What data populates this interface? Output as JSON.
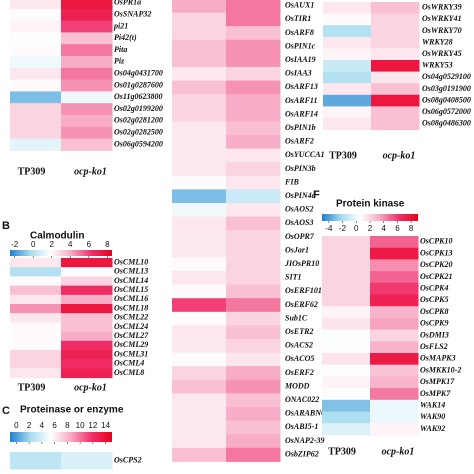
{
  "chart_data": [
    {
      "type": "heatmap",
      "clim": [
        -2.5,
        8.5
      ],
      "colors": [
        "#1f7fd0",
        "#a8dcef",
        "#ffffff",
        "#f7a8c4",
        "#f0306a",
        "#e8001a"
      ],
      "rows": [
        "OsPR1a",
        "OsSNAP32",
        "pi21",
        "Pi42(t)",
        "Pita",
        "Piz",
        "Os04g0431700",
        "Os01g0287600",
        "Os11g0623800",
        "Os02g0199200",
        "Os02g0281200",
        "Os02g0282500",
        "Os06g0594200"
      ],
      "columns": [
        "TP309",
        "ocp-ko1"
      ],
      "values": [
        [
          2.5,
          7.5
        ],
        [
          2,
          7
        ],
        [
          2.2,
          6
        ],
        [
          1.8,
          3.5
        ],
        [
          2,
          5
        ],
        [
          1.5,
          4
        ],
        [
          2.5,
          5
        ],
        [
          2,
          4.5
        ],
        [
          -1,
          1.5
        ],
        [
          3,
          4.5
        ],
        [
          3,
          4
        ],
        [
          3,
          4.5
        ],
        [
          1.2,
          3.5
        ]
      ]
    },
    {
      "type": "heatmap",
      "clim": [
        -2.5,
        8.5
      ],
      "colors": [
        "#1f7fd0",
        "#a8dcef",
        "#ffffff",
        "#f7a8c4",
        "#f0306a",
        "#e8001a"
      ],
      "rows": [
        "OsAUX1",
        "OsTIR1",
        "OsARF8",
        "OsPIN1c",
        "OsIAA19",
        "OsIAA3",
        "OsARF13",
        "OsARF11",
        "OsARF14",
        "OsPIN1b",
        "OsARF2",
        "OsYUCCA1",
        "OsPIN3b",
        "FIB",
        "OsPIN4d",
        "OsAOS2",
        "OsAOS3",
        "OsOPR7",
        "OsJar1",
        "JIOsPR10",
        "SIT1",
        "OsERF101",
        "OsERF62",
        "Sub1C",
        "OsETR2",
        "OsACS2",
        "OsACO5",
        "OsERF2",
        "MODD",
        "ONAC022",
        "OsARABNOX1",
        "OsABI5-1",
        "OsNAP2-39",
        "OsbZIP62"
      ],
      "values": [
        [
          4,
          5
        ],
        [
          3,
          5
        ],
        [
          3,
          3.5
        ],
        [
          3.5,
          4.5
        ],
        [
          3.5,
          4.5
        ],
        [
          2.5,
          3
        ],
        [
          3.5,
          4.5
        ],
        [
          3,
          4
        ],
        [
          3,
          4
        ],
        [
          2.5,
          3.5
        ],
        [
          2.5,
          4
        ],
        [
          2.5,
          2.5
        ],
        [
          2.5,
          3
        ],
        [
          2,
          2.5
        ],
        [
          -1,
          0.5
        ],
        [
          1.5,
          2.5
        ],
        [
          2.5,
          3.5
        ],
        [
          2.5,
          3
        ],
        [
          2.5,
          3
        ],
        [
          2,
          3
        ],
        [
          2.5,
          3
        ],
        [
          2,
          3.5
        ],
        [
          6,
          5
        ],
        [
          2,
          3
        ],
        [
          2.5,
          3.5
        ],
        [
          2.5,
          3
        ],
        [
          2,
          2.5
        ],
        [
          3,
          4
        ],
        [
          3.5,
          4.5
        ],
        [
          2.5,
          3.5
        ],
        [
          2.5,
          4
        ],
        [
          2.5,
          3.5
        ],
        [
          2.5,
          4
        ],
        [
          3.5,
          5
        ]
      ]
    },
    {
      "type": "heatmap",
      "clim": [
        -2.5,
        8.5
      ],
      "colors": [
        "#1f7fd0",
        "#a8dcef",
        "#ffffff",
        "#f7a8c4",
        "#f0306a",
        "#e8001a"
      ],
      "rows": [
        "OsWRKY39",
        "OsWRKY41",
        "OsWRKY70",
        "WRKY28",
        "OsWRKY45",
        "WRKY53",
        "Os04g0529100",
        "Os03g0191900",
        "Os08g0408500",
        "Os06g0572000",
        "Os08g0486300"
      ],
      "columns": [
        "TP309",
        "ocp-ko1"
      ],
      "values": [
        [
          2.5,
          3.5
        ],
        [
          2,
          3
        ],
        [
          0,
          3
        ],
        [
          2.5,
          3
        ],
        [
          2.2,
          2.5
        ],
        [
          0.5,
          7.5
        ],
        [
          0,
          2.5
        ],
        [
          2.5,
          3.5
        ],
        [
          -1.5,
          7.5
        ],
        [
          2.2,
          3.5
        ],
        [
          2.5,
          3.5
        ]
      ]
    },
    {
      "type": "heatmap",
      "label": "B",
      "title": "Calmodulin",
      "clim": [
        -2.5,
        8.5
      ],
      "cticks": [
        -2,
        0,
        2,
        4,
        6,
        8
      ],
      "colors": [
        "#1f7fd0",
        "#a8dcef",
        "#ffffff",
        "#f7a8c4",
        "#f0306a",
        "#e8001a"
      ],
      "rows": [
        "OsCML10",
        "OsCML13",
        "OsCML14",
        "OsCML15",
        "OsCML16",
        "OsCML18",
        "OsCML22",
        "OsCML24",
        "OsCML27",
        "OsCML29",
        "OsCML31",
        "OsCML4",
        "OsCML8"
      ],
      "columns": [
        "TP309",
        "ocp-ko1"
      ],
      "values": [
        [
          2.5,
          7.5
        ],
        [
          0,
          2
        ],
        [
          2,
          3
        ],
        [
          3.5,
          6.5
        ],
        [
          2.5,
          4
        ],
        [
          4.5,
          7.5
        ],
        [
          2.5,
          3.5
        ],
        [
          2,
          3.5
        ],
        [
          2,
          4
        ],
        [
          2,
          6.5
        ],
        [
          3,
          7
        ],
        [
          3,
          6.5
        ],
        [
          2.5,
          7
        ]
      ]
    },
    {
      "type": "heatmap",
      "label": "C",
      "title": "Proteinase or enzyme",
      "clim": [
        -1,
        15
      ],
      "cticks": [
        0,
        2,
        4,
        6,
        8,
        10,
        12,
        14
      ],
      "colors": [
        "#1f7fd0",
        "#a8dcef",
        "#ffffff",
        "#f7a8c4",
        "#f0306a",
        "#e8001a"
      ],
      "rows": [
        "OsCPS2"
      ],
      "values": [
        [
          3,
          4
        ]
      ]
    },
    {
      "type": "heatmap",
      "label": "F",
      "title": "Protein kinase",
      "clim": [
        -5,
        9
      ],
      "cticks": [
        -4,
        -2,
        0,
        2,
        4,
        6,
        8
      ],
      "colors": [
        "#1f7fd0",
        "#a8dcef",
        "#ffffff",
        "#f7a8c4",
        "#f0306a",
        "#e8001a"
      ],
      "rows": [
        "OsCPK10",
        "OsCPK13",
        "OsCPK20",
        "OsCPK21",
        "OsCPK4",
        "OsCPK5",
        "OsCPK8",
        "OsCPK9",
        "OsDMI3",
        "OsFLS2",
        "OsMAPK3",
        "OsMKK10-2",
        "OsMPK17",
        "OsMPK7",
        "WAK14",
        "WAK90",
        "WAK92"
      ],
      "columns": [
        "TP309",
        "ocp-ko1"
      ],
      "values": [
        [
          2,
          5
        ],
        [
          2,
          7.5
        ],
        [
          2,
          4
        ],
        [
          2,
          5
        ],
        [
          2,
          6
        ],
        [
          2,
          7
        ],
        [
          1,
          3
        ],
        [
          1.5,
          3.5
        ],
        [
          0.5,
          2
        ],
        [
          0.5,
          3
        ],
        [
          1.5,
          7.5
        ],
        [
          0.5,
          2.5
        ],
        [
          1,
          3
        ],
        [
          0.5,
          4.5
        ],
        [
          -3,
          0
        ],
        [
          -2,
          0
        ],
        [
          -0.5,
          1
        ]
      ]
    }
  ]
}
